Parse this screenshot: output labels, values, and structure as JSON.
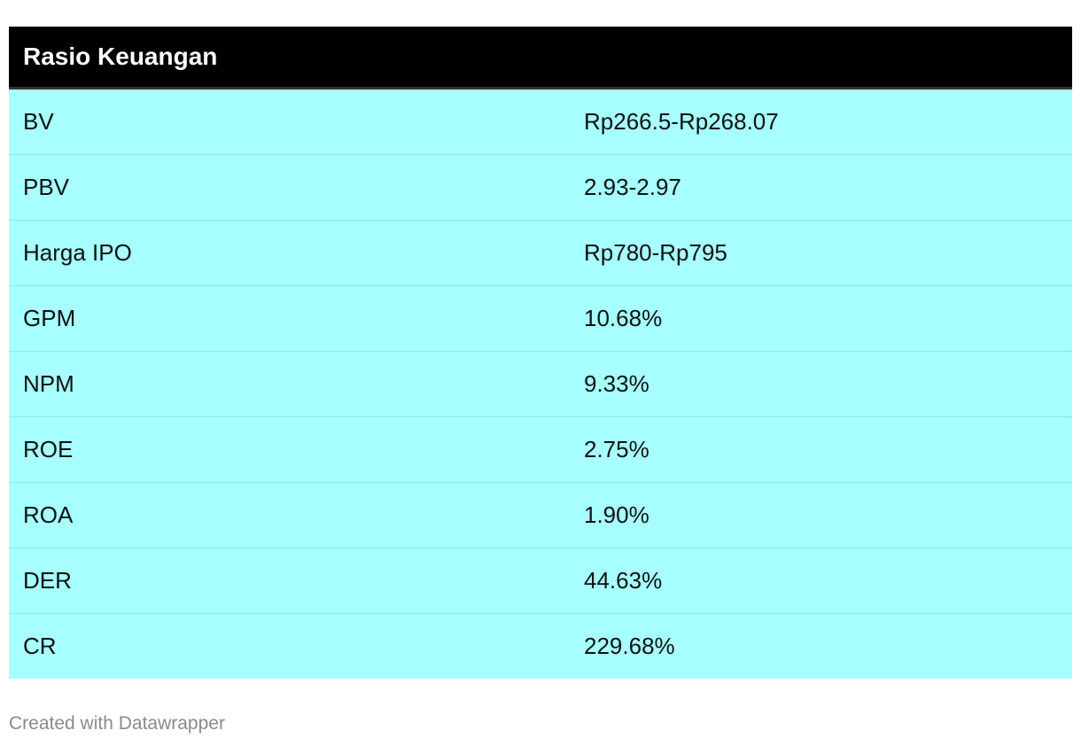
{
  "chart_data": {
    "type": "table",
    "title": "Rasio Keuangan",
    "rows": [
      {
        "label": "BV",
        "value": "Rp266.5-Rp268.07"
      },
      {
        "label": "PBV",
        "value": "2.93-2.97"
      },
      {
        "label": "Harga IPO",
        "value": "Rp780-Rp795"
      },
      {
        "label": "GPM",
        "value": "10.68%"
      },
      {
        "label": "NPM",
        "value": "9.33%"
      },
      {
        "label": "ROE",
        "value": "2.75%"
      },
      {
        "label": "ROA",
        "value": "1.90%"
      },
      {
        "label": "DER",
        "value": "44.63%"
      },
      {
        "label": "CR",
        "value": "229.68%"
      }
    ]
  },
  "footer": {
    "credit": "Created with Datawrapper"
  },
  "colors": {
    "header_bg": "#000000",
    "row_bg": "#a7ffff",
    "footer_text": "#8a8a8a"
  }
}
